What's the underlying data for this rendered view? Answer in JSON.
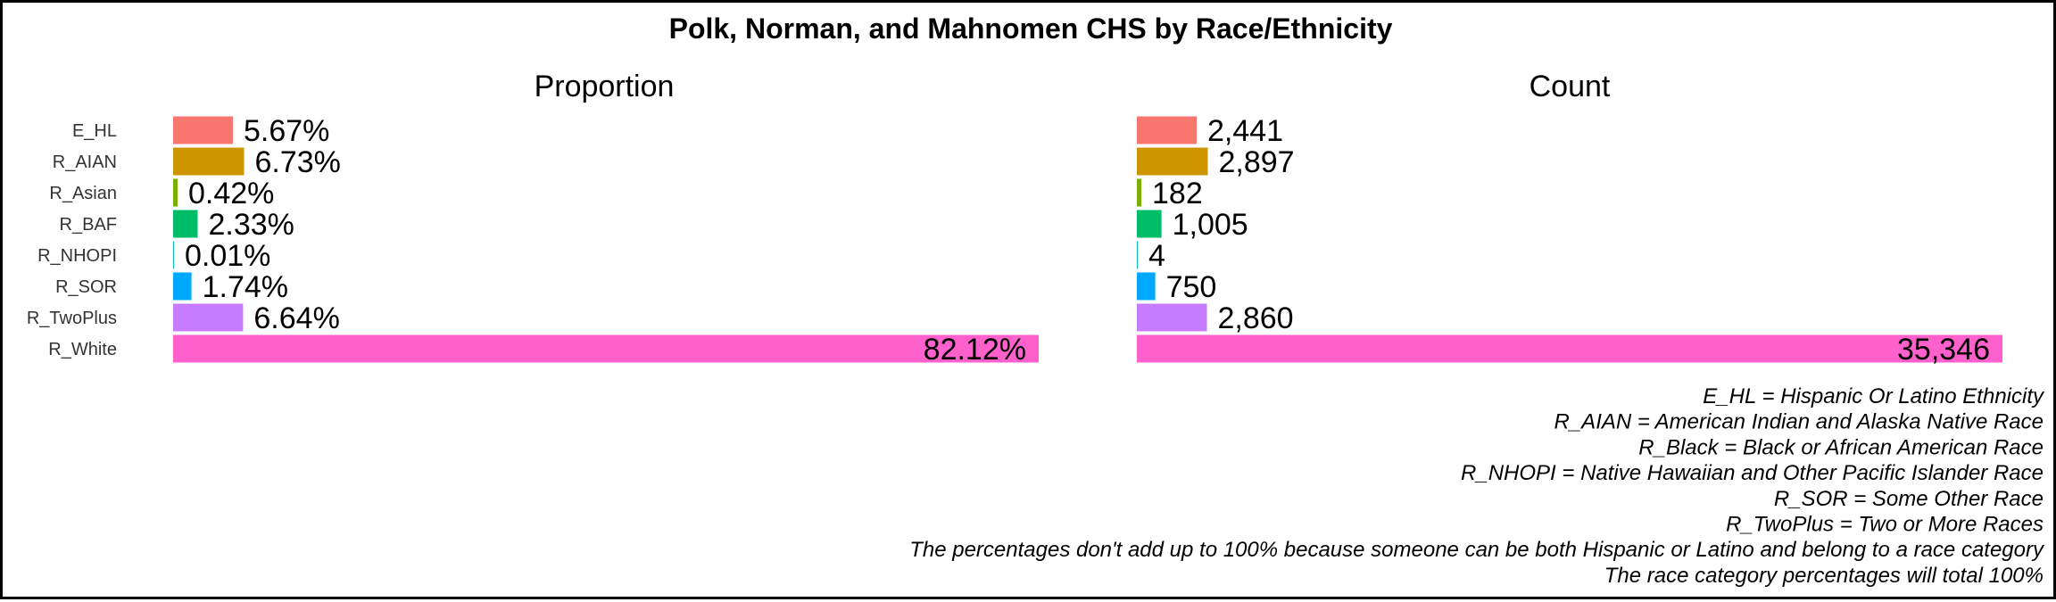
{
  "chart_data": {
    "type": "bar",
    "orientation": "horizontal",
    "title": "Polk, Norman, and Mahnomen CHS by Race/Ethnicity",
    "categories": [
      "E_HL",
      "R_AIAN",
      "R_Asian",
      "R_BAF",
      "R_NHOPI",
      "R_SOR",
      "R_TwoPlus",
      "R_White"
    ],
    "colors": [
      "#F8766D",
      "#CD9600",
      "#7CAE00",
      "#00BE67",
      "#00BFC4",
      "#00A9FF",
      "#C77CFF",
      "#FF61CC"
    ],
    "panels": [
      {
        "title": "Proportion",
        "values": [
          5.67,
          6.73,
          0.42,
          2.33,
          0.01,
          1.74,
          6.64,
          82.12
        ],
        "labels": [
          "5.67%",
          "6.73%",
          "0.42%",
          "2.33%",
          "0.01%",
          "1.74%",
          "6.64%",
          "82.12%"
        ],
        "xlim": [
          0,
          82.12
        ]
      },
      {
        "title": "Count",
        "values": [
          2441,
          2897,
          182,
          1005,
          4,
          750,
          2860,
          35346
        ],
        "labels": [
          "2,441",
          "2,897",
          "182",
          "1,005",
          "4",
          "750",
          "2,860",
          "35,346"
        ],
        "xlim": [
          0,
          35346
        ]
      }
    ],
    "grid": false,
    "legend": "none"
  },
  "notes": [
    "E_HL = Hispanic Or Latino Ethnicity",
    "R_AIAN = American Indian and Alaska Native Race",
    "R_Black = Black or African American Race",
    "R_NHOPI = Native Hawaiian and Other Pacific Islander Race",
    "R_SOR = Some Other Race",
    "R_TwoPlus = Two or More Races",
    "The percentages don't add up to 100% because someone can be both Hispanic or Latino and belong to a race category",
    "The race category percentages will total 100%"
  ]
}
